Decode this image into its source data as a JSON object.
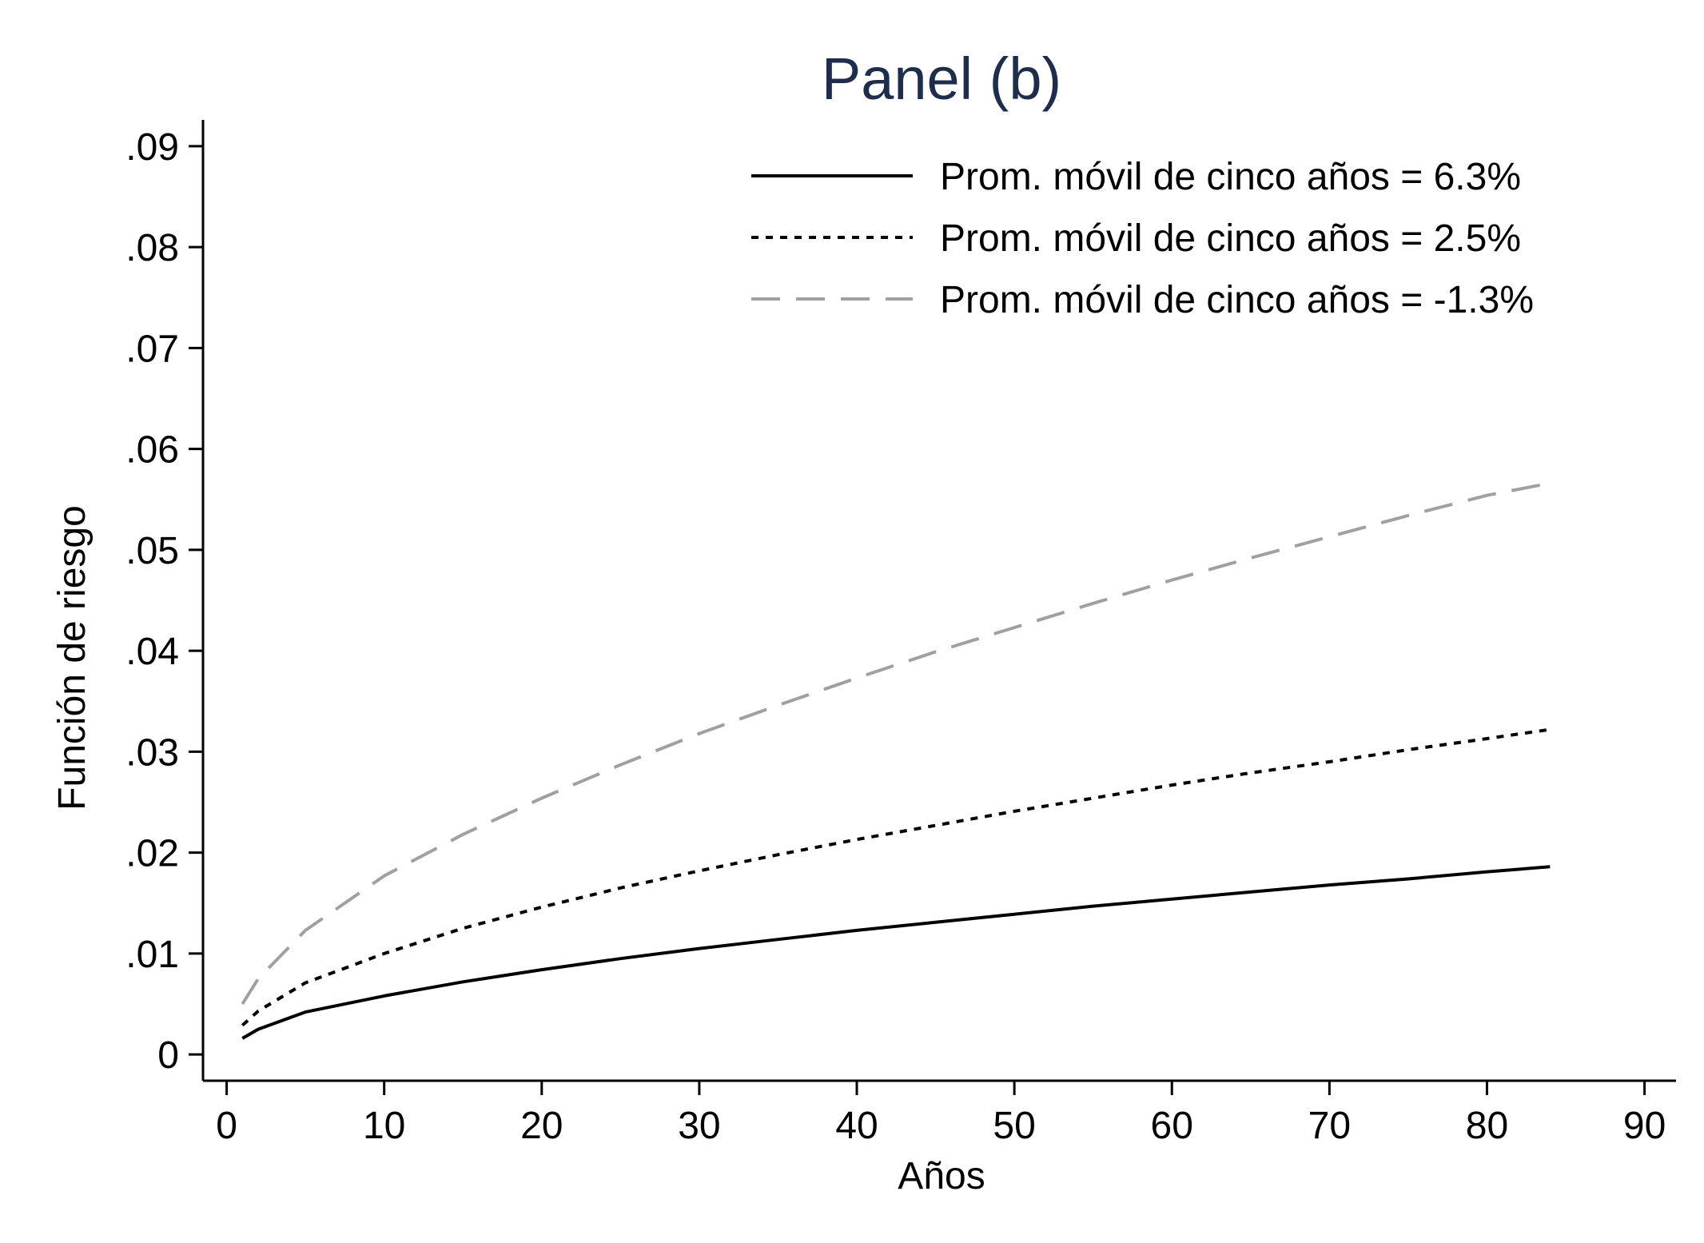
{
  "chart_data": {
    "type": "line",
    "title": "Panel (b)",
    "xlabel": "Años",
    "ylabel": "Función de riesgo",
    "xlim": [
      -1.5,
      92
    ],
    "ylim": [
      -0.0026,
      0.0926
    ],
    "x_ticks": [
      0,
      10,
      20,
      30,
      40,
      50,
      60,
      70,
      80,
      90
    ],
    "x_tick_labels": [
      "0",
      "10",
      "20",
      "30",
      "40",
      "50",
      "60",
      "70",
      "80",
      "90"
    ],
    "y_ticks": [
      0,
      0.01,
      0.02,
      0.03,
      0.04,
      0.05,
      0.06,
      0.07,
      0.08,
      0.09
    ],
    "y_tick_labels": [
      "0",
      ".01",
      ".02",
      ".03",
      ".04",
      ".05",
      ".06",
      ".07",
      ".08",
      ".09"
    ],
    "grid": false,
    "legend_position": "top-right",
    "series": [
      {
        "name": "Prom. móvil de cinco años = 6.3%",
        "style": "solid",
        "color": "#000000",
        "x": [
          1,
          2,
          5,
          10,
          15,
          20,
          25,
          30,
          35,
          40,
          45,
          50,
          55,
          60,
          65,
          70,
          75,
          80,
          84
        ],
        "y": [
          0.0016,
          0.0025,
          0.0042,
          0.0058,
          0.0072,
          0.0084,
          0.0095,
          0.0105,
          0.0114,
          0.0123,
          0.0131,
          0.0139,
          0.0147,
          0.0154,
          0.0161,
          0.0168,
          0.0174,
          0.0181,
          0.0186
        ]
      },
      {
        "name": "Prom. móvil de cinco años = 2.5%",
        "style": "dotted",
        "color": "#000000",
        "x": [
          1,
          2,
          5,
          10,
          15,
          20,
          25,
          30,
          35,
          40,
          45,
          50,
          55,
          60,
          65,
          70,
          75,
          80,
          84
        ],
        "y": [
          0.0029,
          0.0043,
          0.0071,
          0.01,
          0.0125,
          0.0146,
          0.0165,
          0.0182,
          0.0198,
          0.0213,
          0.0227,
          0.0241,
          0.0254,
          0.0267,
          0.0279,
          0.029,
          0.0302,
          0.0313,
          0.0322
        ]
      },
      {
        "name": "Prom. móvil de cinco años = -1.3%",
        "style": "dashed",
        "color": "#a0a0a0",
        "x": [
          1,
          2,
          5,
          10,
          15,
          20,
          25,
          30,
          35,
          40,
          45,
          50,
          55,
          60,
          65,
          70,
          75,
          80,
          84
        ],
        "y": [
          0.005,
          0.0075,
          0.0123,
          0.0177,
          0.0218,
          0.0254,
          0.0287,
          0.0318,
          0.0346,
          0.0373,
          0.0399,
          0.0423,
          0.0447,
          0.047,
          0.0492,
          0.0513,
          0.0534,
          0.0554,
          0.0566
        ]
      }
    ]
  }
}
